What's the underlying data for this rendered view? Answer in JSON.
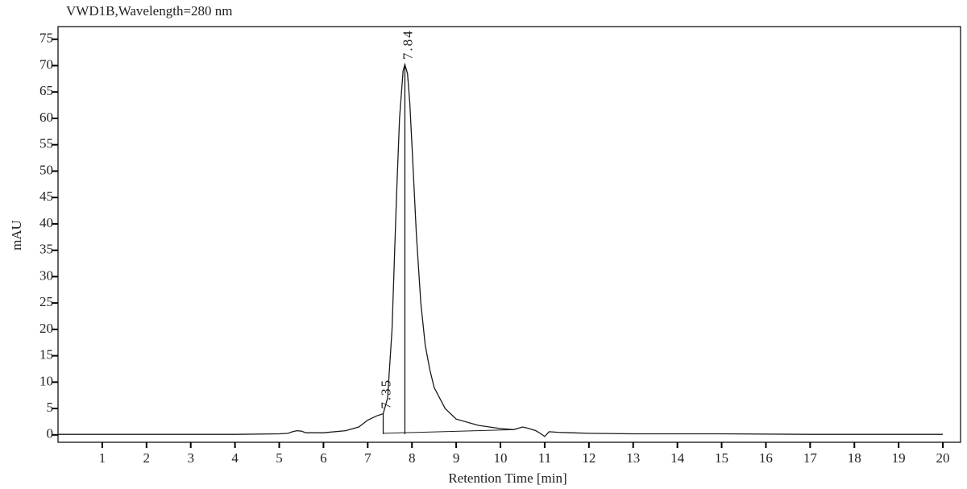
{
  "chart_data": {
    "type": "line",
    "title": "VWD1B,Wavelength=280 nm",
    "xlabel": "Retention Time [min]",
    "ylabel": "mAU",
    "color": "#1a1a1a",
    "x": [
      0,
      2,
      4,
      5,
      5.2,
      5.3,
      5.4,
      5.5,
      5.6,
      6,
      6.5,
      6.8,
      7.0,
      7.2,
      7.35,
      7.45,
      7.55,
      7.65,
      7.72,
      7.8,
      7.84,
      7.9,
      7.95,
      8.0,
      8.1,
      8.2,
      8.3,
      8.4,
      8.5,
      8.75,
      9,
      9.5,
      10,
      10.3,
      10.5,
      10.65,
      10.8,
      10.9,
      11.0,
      11.1,
      11.3,
      11.6,
      12,
      13,
      15,
      17,
      20
    ],
    "values": [
      0.1,
      0.1,
      0.1,
      0.2,
      0.3,
      0.6,
      0.8,
      0.7,
      0.4,
      0.4,
      0.8,
      1.5,
      2.8,
      3.6,
      4.0,
      7.0,
      20.0,
      45.0,
      60.0,
      69.0,
      70.2,
      68.5,
      63.0,
      55.0,
      38.0,
      25.0,
      17.0,
      12.5,
      9.0,
      5.0,
      3.0,
      1.8,
      1.2,
      1.0,
      1.5,
      1.2,
      0.8,
      0.3,
      -0.3,
      0.6,
      0.5,
      0.4,
      0.3,
      0.2,
      0.2,
      0.1,
      0.1
    ],
    "baseline": {
      "x": [
        7.35,
        10.3
      ],
      "values": [
        0.3,
        1.0
      ]
    },
    "peaks": [
      {
        "x": 7.35,
        "y": 4.0,
        "text": "7.35"
      },
      {
        "x": 7.84,
        "y": 70.2,
        "text": "7.84"
      }
    ],
    "xlim": [
      0,
      20.4
    ],
    "ylim": [
      -1.4,
      77.4
    ],
    "xticks": [
      1,
      2,
      3,
      4,
      5,
      6,
      7,
      8,
      9,
      10,
      11,
      12,
      13,
      14,
      15,
      16,
      17,
      18,
      19,
      20
    ],
    "yticks": [
      0,
      5,
      10,
      15,
      20,
      25,
      30,
      35,
      40,
      45,
      50,
      55,
      60,
      65,
      70,
      75
    ]
  }
}
